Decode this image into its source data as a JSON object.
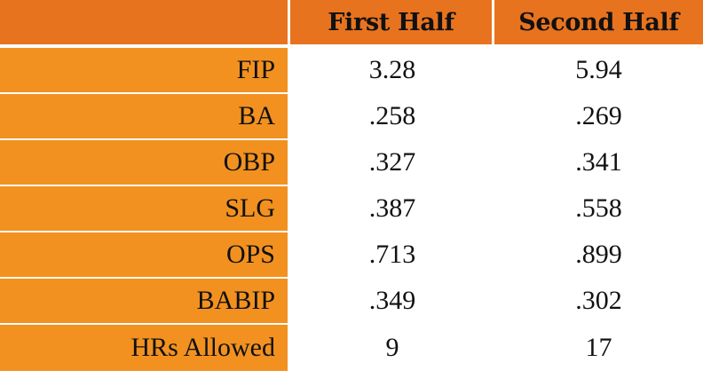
{
  "chart_data": {
    "type": "table",
    "columns": [
      "",
      "First Half",
      "Second Half"
    ],
    "rows": [
      {
        "label": "FIP",
        "first_half": "3.28",
        "second_half": "5.94"
      },
      {
        "label": "BA",
        "first_half": ".258",
        "second_half": ".269"
      },
      {
        "label": "OBP",
        "first_half": ".327",
        "second_half": ".341"
      },
      {
        "label": "SLG",
        "first_half": ".387",
        "second_half": ".558"
      },
      {
        "label": "OPS",
        "first_half": ".713",
        "second_half": ".899"
      },
      {
        "label": "BABIP",
        "first_half": ".349",
        "second_half": ".302"
      },
      {
        "label": "HRs Allowed",
        "first_half": "9",
        "second_half": "17"
      }
    ],
    "colors": {
      "header_bg": "#E8731F",
      "label_bg": "#F29120",
      "cell_bg": "#FFFFFF"
    }
  }
}
